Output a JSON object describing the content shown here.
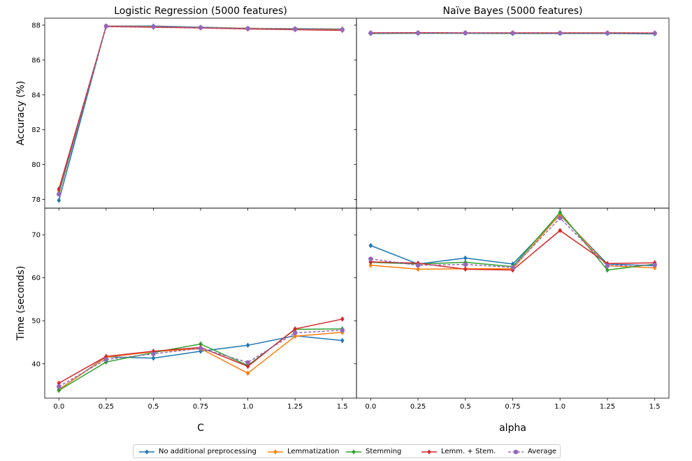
{
  "chart_data": [
    {
      "type": "line",
      "title": "Logistic Regression (5000 features)",
      "xlabel": "",
      "ylabel": "Accuracy (%)",
      "x": [
        0.0,
        0.25,
        0.5,
        0.75,
        1.0,
        1.25,
        1.5
      ],
      "xticks": [
        "0.0",
        "0.25",
        "0.5",
        "0.75",
        "1.0",
        "1.25",
        "1.5"
      ],
      "ylim": [
        77.5,
        88.4
      ],
      "yticks": [
        78,
        80,
        82,
        84,
        86,
        88
      ],
      "series": [
        {
          "name": "No additional preprocessing",
          "color": "#1f77b4",
          "marker": "diamond",
          "dashed": false,
          "values": [
            77.95,
            87.95,
            87.95,
            87.88,
            87.82,
            87.8,
            87.78
          ]
        },
        {
          "name": "Lemmatization",
          "color": "#ff7f0e",
          "marker": "diamond",
          "dashed": false,
          "values": [
            78.5,
            87.95,
            87.92,
            87.86,
            87.82,
            87.78,
            87.76
          ]
        },
        {
          "name": "Stemming",
          "color": "#2ca02c",
          "marker": "diamond",
          "dashed": false,
          "values": [
            78.35,
            87.93,
            87.9,
            87.85,
            87.8,
            87.76,
            87.72
          ]
        },
        {
          "name": "Lemm. + Stem.",
          "color": "#d62728",
          "marker": "diamond",
          "dashed": false,
          "values": [
            78.6,
            87.92,
            87.88,
            87.84,
            87.78,
            87.74,
            87.7
          ]
        },
        {
          "name": "Average",
          "color": "#9467bd",
          "marker": "circle",
          "dashed": true,
          "values": [
            78.3,
            87.94,
            87.91,
            87.86,
            87.8,
            87.77,
            87.74
          ]
        }
      ]
    },
    {
      "type": "line",
      "title": "Naïve Bayes (5000 features)",
      "xlabel": "",
      "ylabel": "",
      "x": [
        0.0,
        0.25,
        0.5,
        0.75,
        1.0,
        1.25,
        1.5
      ],
      "xticks": [
        "0.0",
        "0.25",
        "0.5",
        "0.75",
        "1.0",
        "1.25",
        "1.5"
      ],
      "ylim": [
        77.5,
        88.4
      ],
      "yticks": [
        78,
        80,
        82,
        84,
        86,
        88
      ],
      "series": [
        {
          "name": "No additional preprocessing",
          "color": "#1f77b4",
          "marker": "diamond",
          "dashed": false,
          "values": [
            87.52,
            87.53,
            87.53,
            87.52,
            87.52,
            87.52,
            87.5
          ]
        },
        {
          "name": "Lemmatization",
          "color": "#ff7f0e",
          "marker": "diamond",
          "dashed": false,
          "values": [
            87.55,
            87.56,
            87.55,
            87.55,
            87.55,
            87.55,
            87.54
          ]
        },
        {
          "name": "Stemming",
          "color": "#2ca02c",
          "marker": "diamond",
          "dashed": false,
          "values": [
            87.53,
            87.54,
            87.54,
            87.53,
            87.53,
            87.53,
            87.52
          ]
        },
        {
          "name": "Lemm. + Stem.",
          "color": "#d62728",
          "marker": "diamond",
          "dashed": false,
          "values": [
            87.56,
            87.57,
            87.56,
            87.56,
            87.56,
            87.56,
            87.55
          ]
        },
        {
          "name": "Average",
          "color": "#9467bd",
          "marker": "circle",
          "dashed": true,
          "values": [
            87.54,
            87.55,
            87.55,
            87.54,
            87.54,
            87.54,
            87.53
          ]
        }
      ]
    },
    {
      "type": "line",
      "title": "",
      "xlabel": "C",
      "ylabel": "Time (seconds)",
      "x": [
        0.0,
        0.25,
        0.5,
        0.75,
        1.0,
        1.25,
        1.5
      ],
      "xticks": [
        "0.0",
        "0.25",
        "0.5",
        "0.75",
        "1.0",
        "1.25",
        "1.5"
      ],
      "ylim": [
        32.0,
        76.2
      ],
      "yticks": [
        40,
        50,
        60,
        70
      ],
      "series": [
        {
          "name": "No additional preprocessing",
          "color": "#1f77b4",
          "marker": "diamond",
          "dashed": false,
          "values": [
            34.0,
            41.6,
            41.3,
            42.9,
            44.3,
            46.5,
            45.4
          ]
        },
        {
          "name": "Lemmatization",
          "color": "#ff7f0e",
          "marker": "diamond",
          "dashed": false,
          "values": [
            34.0,
            41.5,
            42.8,
            43.5,
            37.8,
            46.4,
            47.3
          ]
        },
        {
          "name": "Stemming",
          "color": "#2ca02c",
          "marker": "diamond",
          "dashed": false,
          "values": [
            33.8,
            40.4,
            42.6,
            44.6,
            39.6,
            48.0,
            48.1
          ]
        },
        {
          "name": "Lemm. + Stem.",
          "color": "#d62728",
          "marker": "diamond",
          "dashed": false,
          "values": [
            35.5,
            41.7,
            42.9,
            43.8,
            39.4,
            48.1,
            50.4
          ]
        },
        {
          "name": "Average",
          "color": "#9467bd",
          "marker": "circle",
          "dashed": true,
          "values": [
            34.7,
            41.0,
            42.3,
            43.6,
            40.3,
            47.2,
            47.8
          ]
        }
      ]
    },
    {
      "type": "line",
      "title": "",
      "xlabel": "alpha",
      "ylabel": "",
      "x": [
        0.0,
        0.25,
        0.5,
        0.75,
        1.0,
        1.25,
        1.5
      ],
      "xticks": [
        "0.0",
        "0.25",
        "0.5",
        "0.75",
        "1.0",
        "1.25",
        "1.5"
      ],
      "ylim": [
        32.0,
        76.2
      ],
      "yticks": [
        40,
        50,
        60,
        70
      ],
      "series": [
        {
          "name": "No additional preprocessing",
          "color": "#1f77b4",
          "marker": "diamond",
          "dashed": false,
          "values": [
            67.5,
            63.2,
            64.6,
            63.2,
            74.6,
            63.2,
            62.8
          ]
        },
        {
          "name": "Lemmatization",
          "color": "#ff7f0e",
          "marker": "diamond",
          "dashed": false,
          "values": [
            62.9,
            62.0,
            62.1,
            62.1,
            74.8,
            62.8,
            62.3
          ]
        },
        {
          "name": "Stemming",
          "color": "#2ca02c",
          "marker": "diamond",
          "dashed": false,
          "values": [
            63.6,
            63.2,
            63.6,
            62.6,
            75.2,
            61.8,
            63.2
          ]
        },
        {
          "name": "Lemm. + Stem.",
          "color": "#d62728",
          "marker": "diamond",
          "dashed": false,
          "values": [
            63.7,
            63.4,
            62.0,
            61.8,
            71.0,
            63.3,
            63.5
          ]
        },
        {
          "name": "Average",
          "color": "#9467bd",
          "marker": "circle",
          "dashed": true,
          "values": [
            64.4,
            62.9,
            63.1,
            62.4,
            73.9,
            62.8,
            63.0
          ]
        }
      ]
    }
  ],
  "legend": {
    "placement": "bottom-center",
    "items": [
      {
        "label": "No additional preprocessing",
        "color": "#1f77b4",
        "marker": "diamond",
        "dashed": false
      },
      {
        "label": "Lemmatization",
        "color": "#ff7f0e",
        "marker": "diamond",
        "dashed": false
      },
      {
        "label": "Stemming",
        "color": "#2ca02c",
        "marker": "diamond",
        "dashed": false
      },
      {
        "label": "Lemm. + Stem.",
        "color": "#d62728",
        "marker": "diamond",
        "dashed": false
      },
      {
        "label": "Average",
        "color": "#9467bd",
        "marker": "circle",
        "dashed": true
      }
    ]
  }
}
